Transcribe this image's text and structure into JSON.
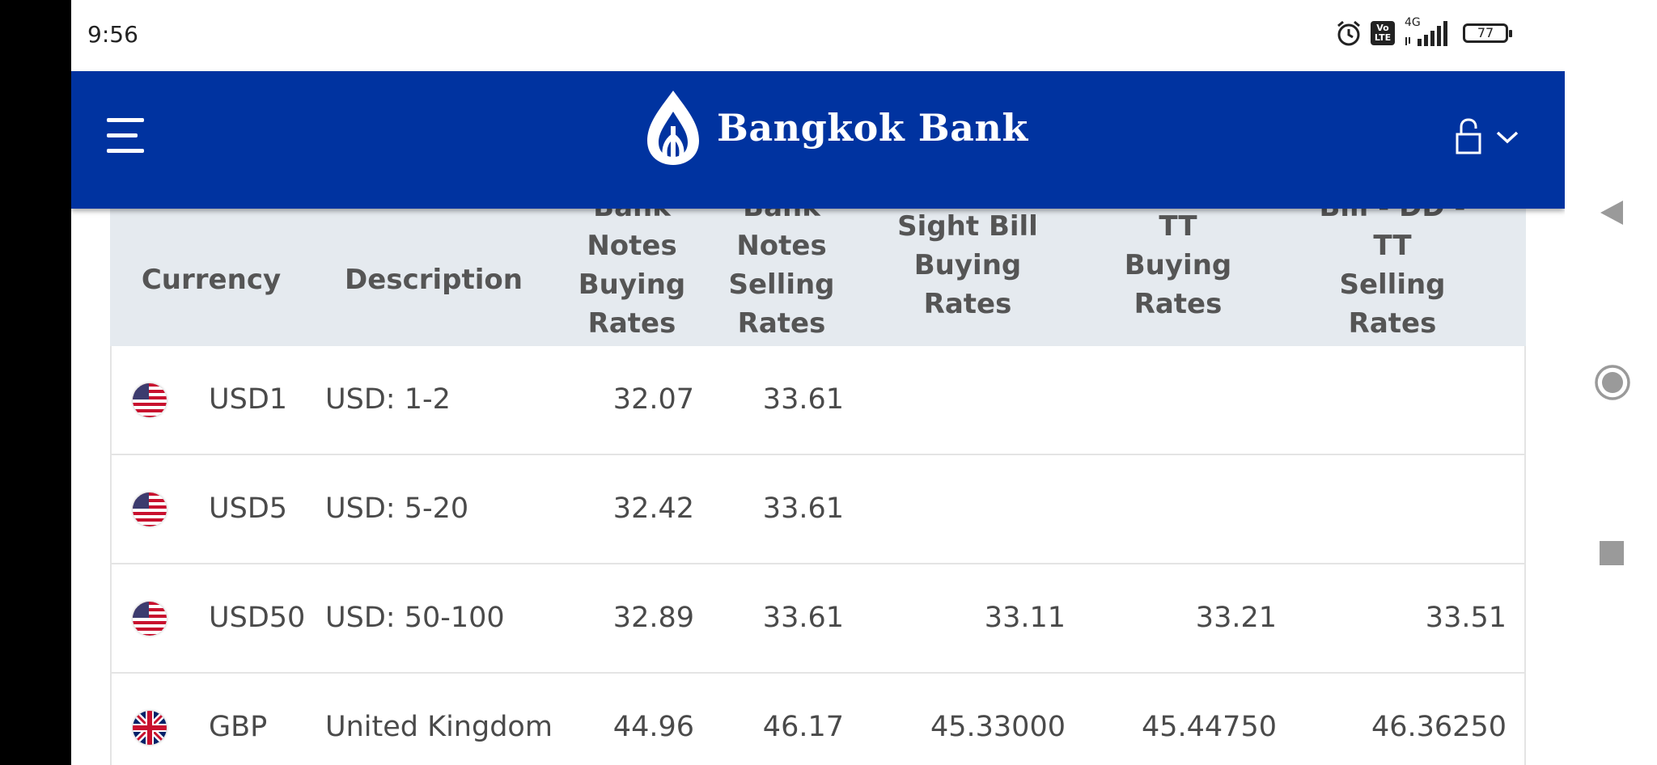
{
  "status_bar": {
    "time": "9:56",
    "volte": "Vo LTE",
    "network": "4G",
    "battery": "77"
  },
  "header": {
    "brand": "Bangkok Bank",
    "brand_color": "#0033a0",
    "menu_icon": "hamburger-icon",
    "lock_icon": "lock-icon"
  },
  "table": {
    "columns": {
      "currency": "Currency",
      "description": "Description",
      "notes_buying": [
        "Bank",
        "Notes",
        "Buying",
        "Rates"
      ],
      "notes_selling": [
        "Bank",
        "Notes",
        "Selling",
        "Rates"
      ],
      "sight_buying": [
        "Sight Bill",
        "Buying",
        "Rates"
      ],
      "tt_buying": [
        "TT",
        "Buying",
        "Rates"
      ],
      "tt_selling": [
        "Bill - DD -",
        "TT",
        "Selling",
        "Rates"
      ]
    },
    "rows": [
      {
        "flag": "us-flag-icon",
        "currency": "USD1",
        "description": "USD: 1-2",
        "notes_buying": "32.07",
        "notes_selling": "33.61",
        "sight_buying": "",
        "tt_buying": "",
        "tt_selling": ""
      },
      {
        "flag": "us-flag-icon",
        "currency": "USD5",
        "description": "USD: 5-20",
        "notes_buying": "32.42",
        "notes_selling": "33.61",
        "sight_buying": "",
        "tt_buying": "",
        "tt_selling": ""
      },
      {
        "flag": "us-flag-icon",
        "currency": "USD50",
        "description": "USD: 50-100",
        "notes_buying": "32.89",
        "notes_selling": "33.61",
        "sight_buying": "33.11",
        "tt_buying": "33.21",
        "tt_selling": "33.51"
      },
      {
        "flag": "uk-flag-icon",
        "currency": "GBP",
        "description": "United Kingdom",
        "notes_buying": "44.96",
        "notes_selling": "46.17",
        "sight_buying": "45.33000",
        "tt_buying": "45.44750",
        "tt_selling": "46.36250"
      }
    ]
  }
}
